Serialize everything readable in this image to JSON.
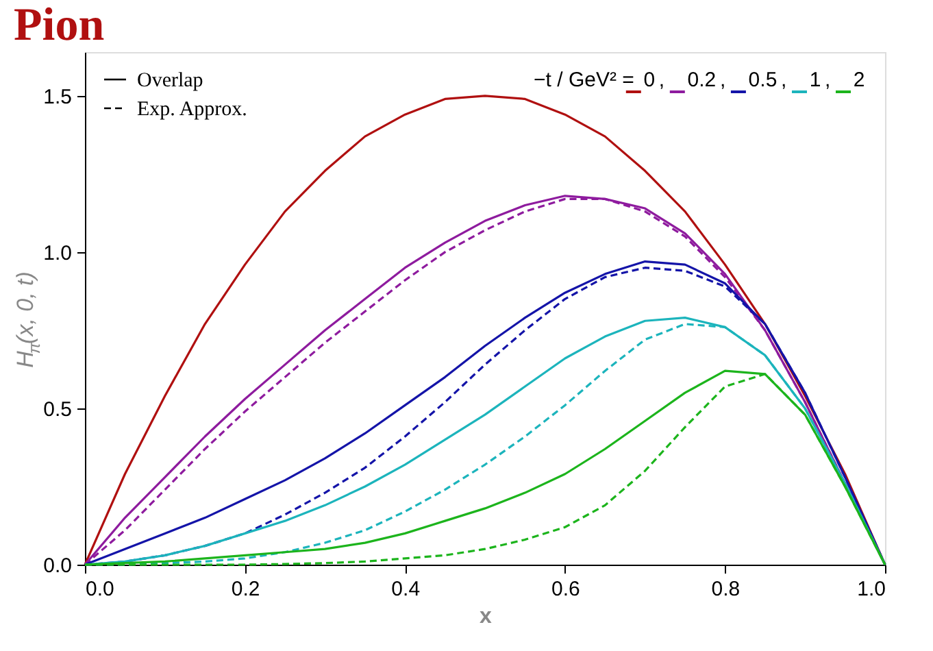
{
  "chart_data": {
    "type": "line",
    "title": "Pion",
    "xlabel": "x",
    "ylabel": "H$_{π}$(x, 0, t)",
    "legend_title": "−t / GeV² =",
    "annotations": [
      "Overlap",
      "Exp. Approx.",
      ","
    ],
    "x": [
      0,
      0.05,
      0.1,
      0.15,
      0.2,
      0.25,
      0.3,
      0.35,
      0.4,
      0.45,
      0.5,
      0.55,
      0.6,
      0.65,
      0.7,
      0.75,
      0.8,
      0.85,
      0.9,
      0.95,
      1.0
    ],
    "xlim": [
      0,
      1
    ],
    "ylim": [
      0,
      1.64
    ],
    "xticks": [
      {
        "value": 0,
        "label": "0.0"
      },
      0.2,
      0.4,
      0.6,
      0.8,
      {
        "value": 1,
        "label": "1.0"
      }
    ],
    "yticks": [
      {
        "value": 0,
        "label": "0.0"
      },
      0.5,
      {
        "value": 1,
        "label": "1.0"
      },
      1.5
    ],
    "grid": false,
    "legend": "top right",
    "marker": "none",
    "series": [
      {
        "name": "0",
        "color": "#b01010",
        "line_style": "solid",
        "values": [
          0,
          0.29,
          0.54,
          0.77,
          0.96,
          1.13,
          1.26,
          1.37,
          1.44,
          1.49,
          1.5,
          1.49,
          1.44,
          1.37,
          1.26,
          1.13,
          0.96,
          0.77,
          0.54,
          0.29,
          0
        ]
      },
      {
        "name": "0.2",
        "color": "#8e1b9e",
        "line_style": "solid",
        "values": [
          0,
          0.15,
          0.28,
          0.41,
          0.53,
          0.64,
          0.75,
          0.85,
          0.95,
          1.03,
          1.1,
          1.15,
          1.18,
          1.17,
          1.14,
          1.06,
          0.93,
          0.75,
          0.52,
          0.26,
          0
        ]
      },
      {
        "color": "#8e1b9e",
        "line_style": "dashed",
        "values": [
          0,
          0.11,
          0.24,
          0.37,
          0.49,
          0.6,
          0.71,
          0.81,
          0.91,
          1.0,
          1.07,
          1.13,
          1.17,
          1.17,
          1.13,
          1.05,
          0.92,
          0.75,
          0.52,
          0.26,
          0
        ]
      },
      {
        "name": "0.5",
        "color": "#1414a8",
        "line_style": "solid",
        "values": [
          0,
          0.05,
          0.1,
          0.15,
          0.21,
          0.27,
          0.34,
          0.42,
          0.51,
          0.6,
          0.7,
          0.79,
          0.87,
          0.93,
          0.97,
          0.96,
          0.9,
          0.77,
          0.55,
          0.28,
          0
        ]
      },
      {
        "color": "#1414a8",
        "line_style": "dashed",
        "values": [
          0,
          0.01,
          0.03,
          0.06,
          0.1,
          0.16,
          0.23,
          0.31,
          0.41,
          0.52,
          0.64,
          0.75,
          0.85,
          0.92,
          0.95,
          0.94,
          0.89,
          0.77,
          0.55,
          0.28,
          0
        ]
      },
      {
        "name": "1",
        "color": "#1cb4bc",
        "line_style": "solid",
        "values": [
          0,
          0.01,
          0.03,
          0.06,
          0.1,
          0.14,
          0.19,
          0.25,
          0.32,
          0.4,
          0.48,
          0.57,
          0.66,
          0.73,
          0.78,
          0.79,
          0.76,
          0.67,
          0.5,
          0.26,
          0
        ]
      },
      {
        "color": "#1cb4bc",
        "line_style": "dashed",
        "values": [
          0,
          0,
          0.005,
          0.01,
          0.02,
          0.04,
          0.07,
          0.11,
          0.17,
          0.24,
          0.32,
          0.41,
          0.51,
          0.62,
          0.72,
          0.77,
          0.76,
          0.67,
          0.5,
          0.26,
          0
        ]
      },
      {
        "name": "2",
        "color": "#1cb41c",
        "line_style": "solid",
        "values": [
          0,
          0.005,
          0.01,
          0.02,
          0.03,
          0.04,
          0.05,
          0.07,
          0.1,
          0.14,
          0.18,
          0.23,
          0.29,
          0.37,
          0.46,
          0.55,
          0.62,
          0.61,
          0.48,
          0.25,
          0
        ]
      },
      {
        "color": "#1cb41c",
        "line_style": "dashed",
        "values": [
          0,
          0,
          0,
          0,
          0,
          0.002,
          0.005,
          0.01,
          0.02,
          0.03,
          0.05,
          0.08,
          0.12,
          0.19,
          0.3,
          0.44,
          0.57,
          0.61,
          0.48,
          0.25,
          0
        ]
      }
    ]
  }
}
